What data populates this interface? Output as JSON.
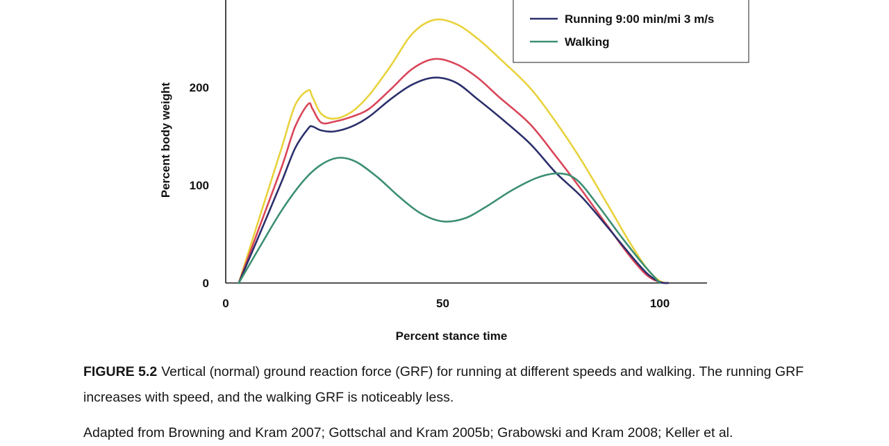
{
  "chart_data": {
    "type": "line",
    "xlabel": "Percent stance time",
    "ylabel": "Percent body weight",
    "xlim": [
      0,
      110
    ],
    "ylim": [
      0,
      290
    ],
    "x_ticks": [
      "0",
      "50",
      "100"
    ],
    "y_ticks": [
      "0",
      "100",
      "200"
    ],
    "grid": false,
    "legend_position": "top-right",
    "series": [
      {
        "name": "",
        "color": "#e8d23a",
        "x": [
          3,
          8,
          13,
          16,
          19,
          20,
          22,
          25,
          29,
          33,
          38,
          43,
          48,
          53,
          58,
          63,
          70,
          76,
          82,
          88,
          93,
          97,
          100,
          102
        ],
        "y": [
          0,
          70,
          140,
          182,
          197,
          190,
          173,
          168,
          175,
          192,
          222,
          255,
          269,
          265,
          250,
          230,
          200,
          165,
          125,
          80,
          42,
          15,
          2,
          0
        ]
      },
      {
        "name": "",
        "color": "#d94558",
        "x": [
          3,
          8,
          13,
          16,
          19,
          20,
          22,
          25,
          29,
          33,
          38,
          43,
          48,
          53,
          58,
          63,
          70,
          76,
          82,
          88,
          93,
          97,
          100,
          102
        ],
        "y": [
          0,
          60,
          120,
          160,
          183,
          178,
          164,
          165,
          170,
          178,
          198,
          219,
          229,
          224,
          210,
          190,
          163,
          130,
          95,
          58,
          28,
          8,
          1,
          0
        ]
      },
      {
        "name": "Running 9:00 min/mi 3 m/s",
        "color": "#2b2f6b",
        "x": [
          3,
          8,
          13,
          16,
          19,
          20,
          22,
          25,
          29,
          33,
          38,
          43,
          48,
          53,
          58,
          63,
          70,
          76,
          82,
          88,
          93,
          97,
          100,
          102
        ],
        "y": [
          0,
          52,
          105,
          138,
          158,
          160,
          156,
          155,
          160,
          170,
          188,
          203,
          210,
          205,
          188,
          170,
          143,
          113,
          88,
          57,
          30,
          10,
          1,
          0
        ]
      },
      {
        "name": "Walking",
        "color": "#3c8f72",
        "x": [
          3,
          8,
          13,
          18,
          22,
          26,
          30,
          35,
          40,
          45,
          50,
          55,
          60,
          66,
          72,
          77,
          81,
          86,
          91,
          96,
          100
        ],
        "y": [
          0,
          38,
          75,
          105,
          121,
          128,
          124,
          108,
          88,
          71,
          63,
          66,
          78,
          95,
          108,
          112,
          105,
          78,
          48,
          20,
          0
        ]
      }
    ]
  },
  "caption": {
    "figure_label": "FIGURE 5.2",
    "text": "Vertical (normal) ground reaction force (GRF) for running at different speeds and walking. The running GRF increases with speed, and the walking GRF is noticeably less.",
    "source": "Adapted from Browning and Kram 2007; Gottschal and Kram 2005b; Grabowski and Kram 2008; Keller et al."
  },
  "colors": {
    "axis": "#1a1a1a",
    "legend_border": "#444444"
  }
}
